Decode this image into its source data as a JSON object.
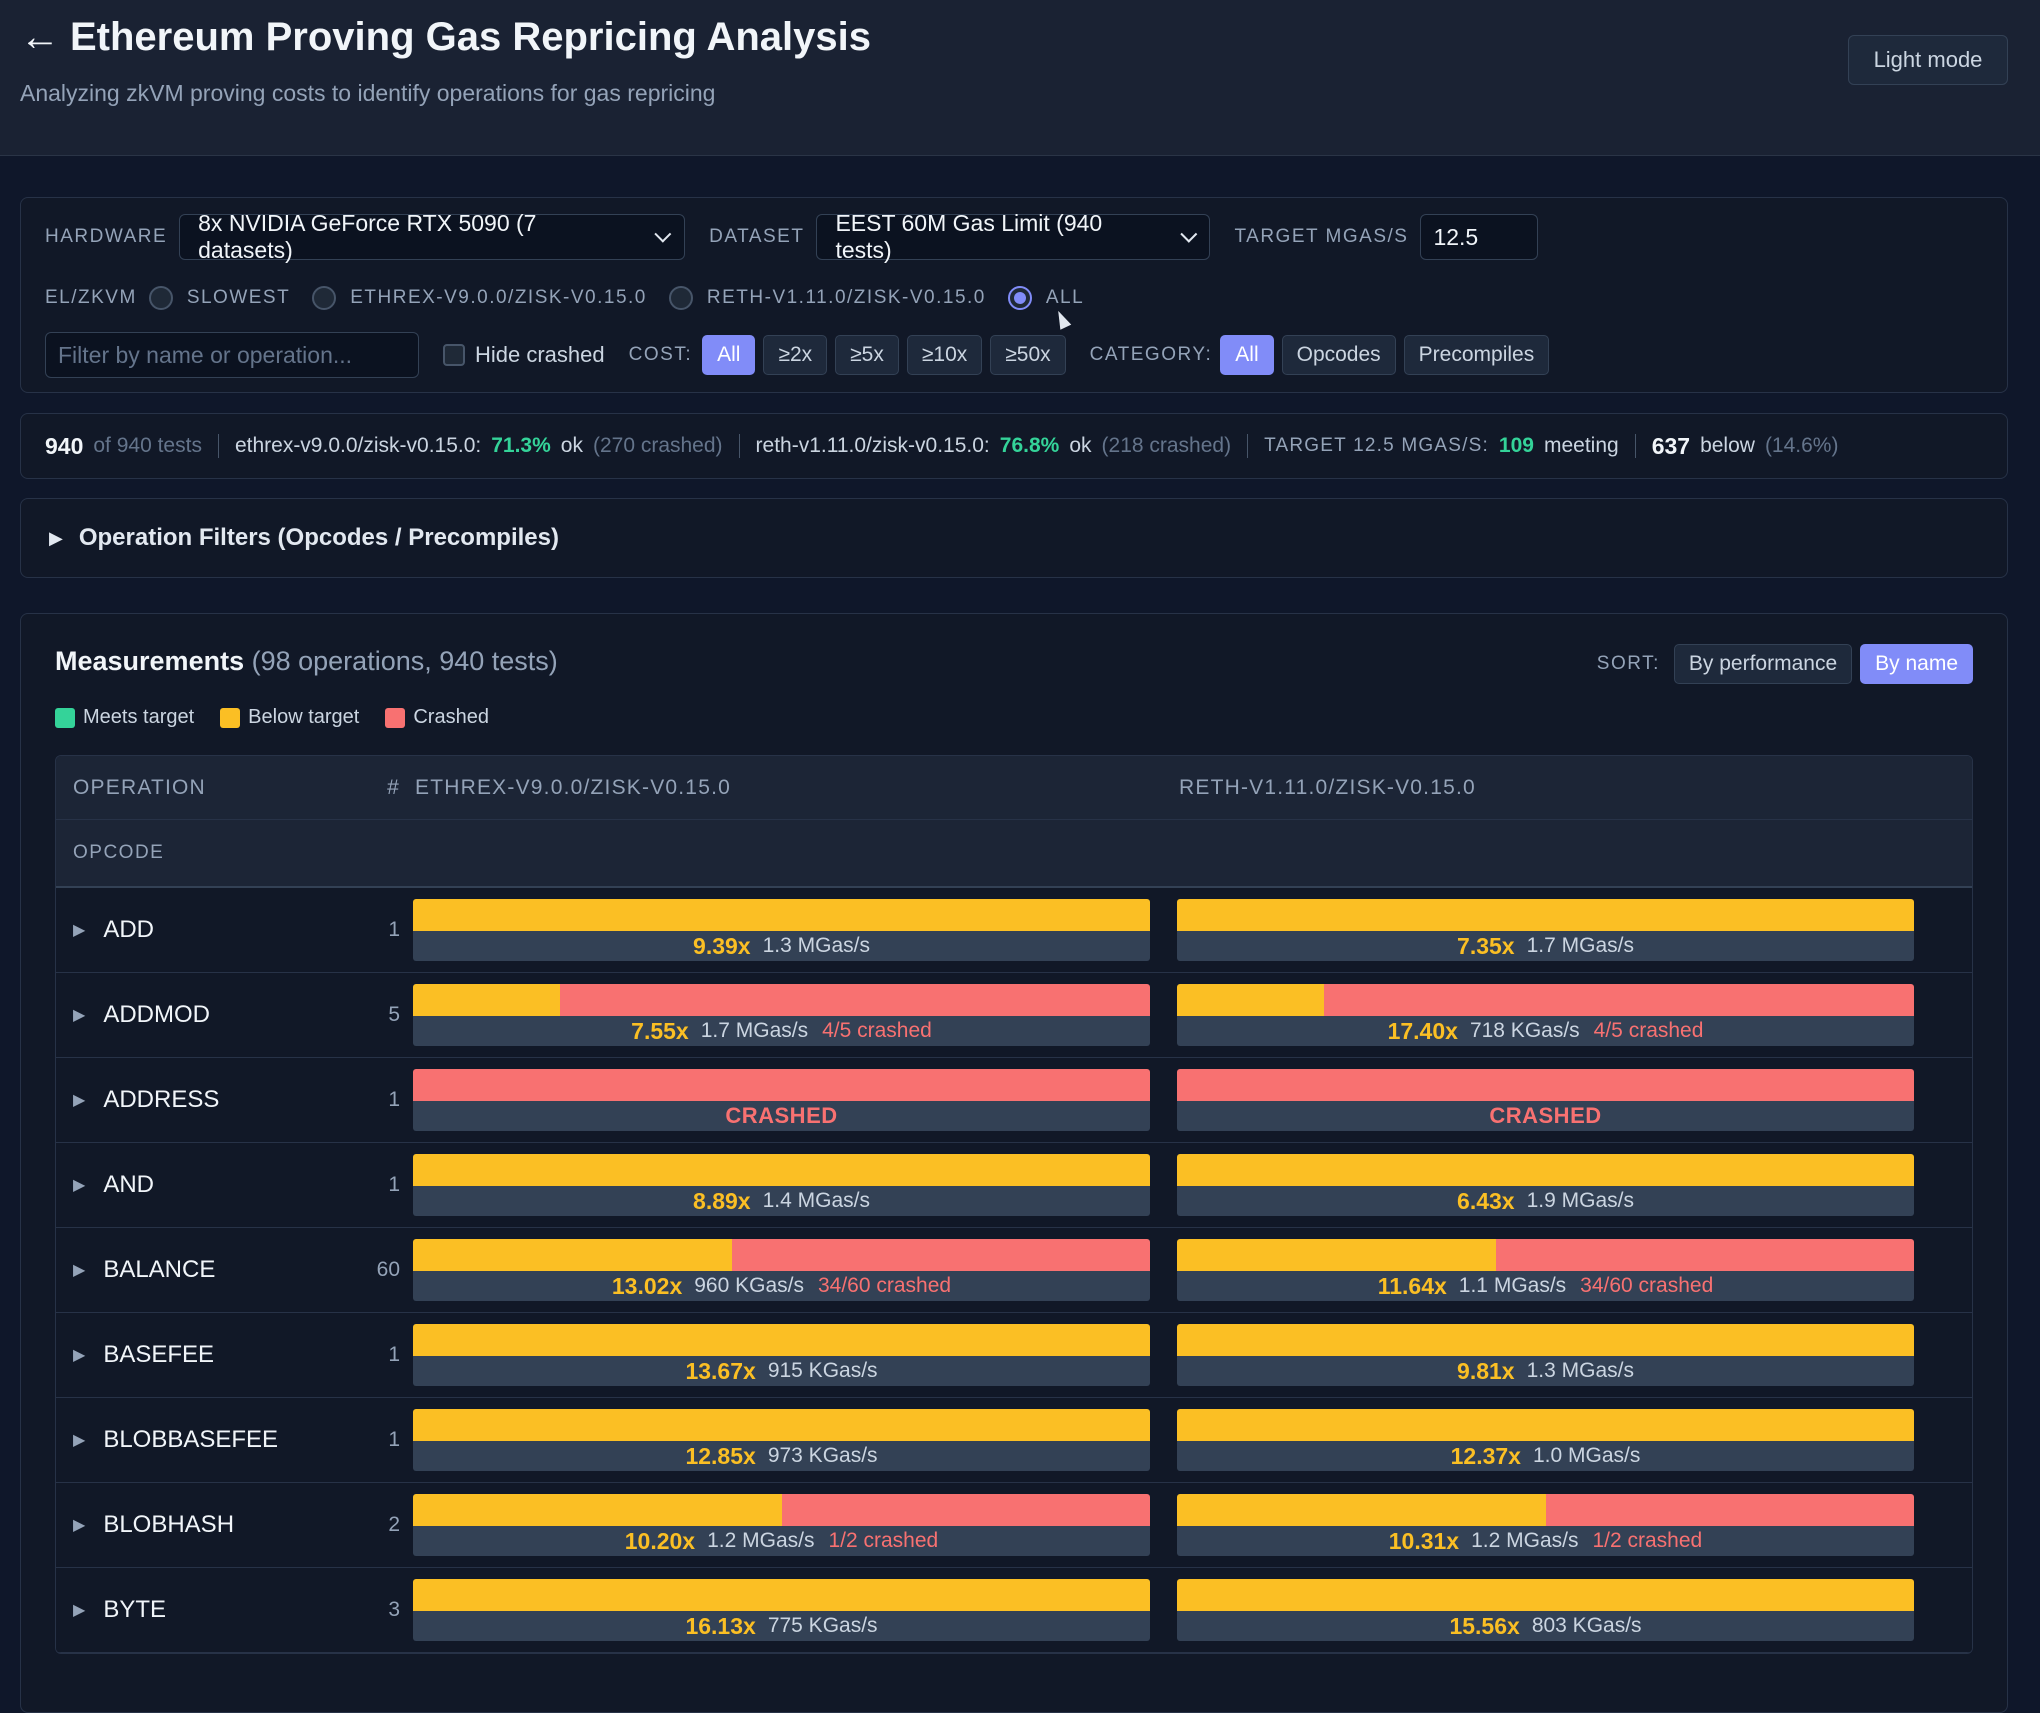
{
  "header": {
    "back": "←",
    "title": "Ethereum Proving Gas Repricing Analysis",
    "subtitle": "Analyzing zkVM proving costs to identify operations for gas repricing",
    "mode_button": "Light mode"
  },
  "controls": {
    "hardware_label": "HARDWARE",
    "hardware_value": "8x NVIDIA GeForce RTX 5090 (7 datasets)",
    "dataset_label": "DATASET",
    "dataset_value": "EEST 60M Gas Limit (940 tests)",
    "target_label": "TARGET MGAS/S",
    "target_value": "12.5",
    "elzkvm_label": "EL/ZKVM",
    "radios": [
      "SLOWEST",
      "ETHREX-V9.0.0/ZISK-V0.15.0",
      "RETH-V1.11.0/ZISK-V0.15.0",
      "ALL"
    ],
    "filter_placeholder": "Filter by name or operation...",
    "hide_crashed": "Hide crashed",
    "cost_label": "COST:",
    "cost_options": [
      "All",
      "≥2x",
      "≥5x",
      "≥10x",
      "≥50x"
    ],
    "category_label": "CATEGORY:",
    "category_options": [
      "All",
      "Opcodes",
      "Precompiles"
    ]
  },
  "stats": {
    "count": "940",
    "of_tests": "of 940 tests",
    "ethrex_label": "ethrex-v9.0.0/zisk-v0.15.0:",
    "ethrex_pct": "71.3%",
    "ok": "ok",
    "ethrex_crashed": "(270 crashed)",
    "reth_label": "reth-v1.11.0/zisk-v0.15.0:",
    "reth_pct": "76.8%",
    "reth_crashed": "(218 crashed)",
    "target_label": "TARGET 12.5 MGAS/S:",
    "meeting_count": "109",
    "meeting": "meeting",
    "below_count": "637",
    "below": "below",
    "below_pct": "(14.6%)"
  },
  "op_filters": "Operation Filters (Opcodes / Precompiles)",
  "measurements": {
    "title": "Measurements",
    "subtitle": "(98 operations, 940 tests)",
    "sort_label": "SORT:",
    "sort_options": [
      "By performance",
      "By name"
    ],
    "legend": [
      "Meets target",
      "Below target",
      "Crashed"
    ],
    "colors": {
      "meets": "#34d399",
      "below": "#fbbf24",
      "crashed": "#f87171",
      "accent": "#818cf8"
    },
    "columns": [
      "OPERATION",
      "#",
      "ETHREX-V9.0.0/ZISK-V0.15.0",
      "RETH-V1.11.0/ZISK-V0.15.0"
    ],
    "group": "OPCODE",
    "rows": [
      {
        "op": "ADD",
        "n": "1",
        "a": {
          "ok": 1.0,
          "x": "9.39x",
          "rate": "1.3 MGas/s",
          "crashed": ""
        },
        "b": {
          "ok": 1.0,
          "x": "7.35x",
          "rate": "1.7 MGas/s",
          "crashed": ""
        }
      },
      {
        "op": "ADDMOD",
        "n": "5",
        "a": {
          "ok": 0.2,
          "x": "7.55x",
          "rate": "1.7 MGas/s",
          "crashed": "4/5 crashed"
        },
        "b": {
          "ok": 0.2,
          "x": "17.40x",
          "rate": "718 KGas/s",
          "crashed": "4/5 crashed"
        }
      },
      {
        "op": "ADDRESS",
        "n": "1",
        "a": {
          "ok": 0.0,
          "crash_text": "CRASHED"
        },
        "b": {
          "ok": 0.0,
          "crash_text": "CRASHED"
        }
      },
      {
        "op": "AND",
        "n": "1",
        "a": {
          "ok": 1.0,
          "x": "8.89x",
          "rate": "1.4 MGas/s",
          "crashed": ""
        },
        "b": {
          "ok": 1.0,
          "x": "6.43x",
          "rate": "1.9 MGas/s",
          "crashed": ""
        }
      },
      {
        "op": "BALANCE",
        "n": "60",
        "a": {
          "ok": 0.433,
          "x": "13.02x",
          "rate": "960 KGas/s",
          "crashed": "34/60 crashed"
        },
        "b": {
          "ok": 0.433,
          "x": "11.64x",
          "rate": "1.1 MGas/s",
          "crashed": "34/60 crashed"
        }
      },
      {
        "op": "BASEFEE",
        "n": "1",
        "a": {
          "ok": 1.0,
          "x": "13.67x",
          "rate": "915 KGas/s",
          "crashed": ""
        },
        "b": {
          "ok": 1.0,
          "x": "9.81x",
          "rate": "1.3 MGas/s",
          "crashed": ""
        }
      },
      {
        "op": "BLOBBASEFEE",
        "n": "1",
        "a": {
          "ok": 1.0,
          "x": "12.85x",
          "rate": "973 KGas/s",
          "crashed": ""
        },
        "b": {
          "ok": 1.0,
          "x": "12.37x",
          "rate": "1.0 MGas/s",
          "crashed": ""
        }
      },
      {
        "op": "BLOBHASH",
        "n": "2",
        "a": {
          "ok": 0.5,
          "x": "10.20x",
          "rate": "1.2 MGas/s",
          "crashed": "1/2 crashed"
        },
        "b": {
          "ok": 0.5,
          "x": "10.31x",
          "rate": "1.2 MGas/s",
          "crashed": "1/2 crashed"
        }
      },
      {
        "op": "BYTE",
        "n": "3",
        "a": {
          "ok": 1.0,
          "x": "16.13x",
          "rate": "775 KGas/s",
          "crashed": ""
        },
        "b": {
          "ok": 1.0,
          "x": "15.56x",
          "rate": "803 KGas/s",
          "crashed": ""
        }
      }
    ]
  }
}
